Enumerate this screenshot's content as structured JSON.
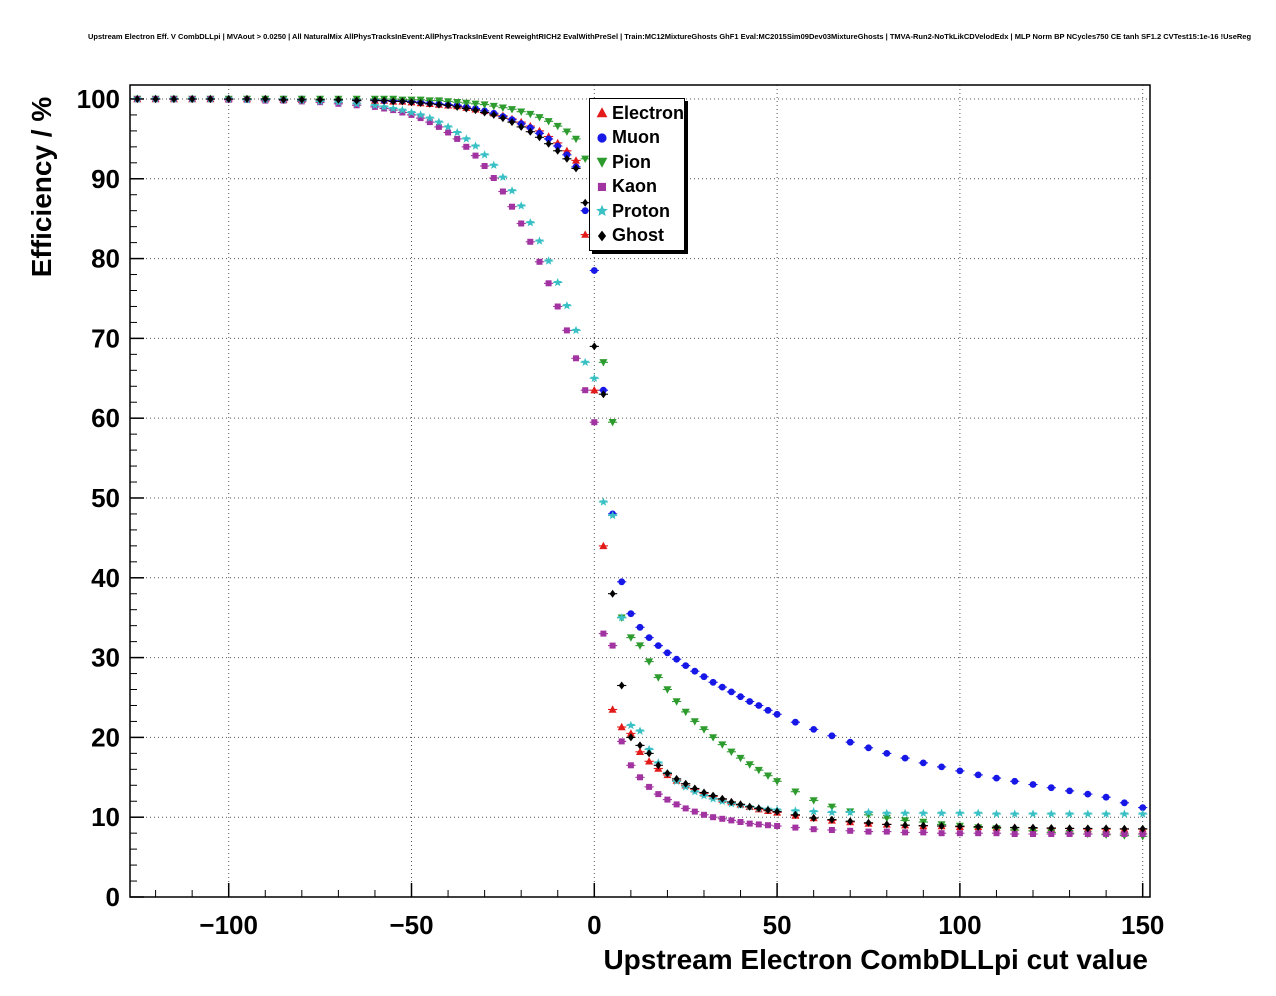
{
  "title": "Upstream Electron Eff. V CombDLLpi | MVAout > 0.0250 | All NaturalMix AllPhysTracksInEvent:AllPhysTracksInEvent ReweightRICH2 EvalWithPreSel | Train:MC12MixtureGhosts GhF1 Eval:MC2015Sim09Dev03MixtureGhosts | TMVA-Run2-NoTkLikCDVelodEdx | MLP Norm BP NCycles750 CE tanh SF1.2 CVTest15:1e-16 !UseReg",
  "chart_data": {
    "type": "scatter",
    "title": "Upstream Electron Eff. V CombDLLpi",
    "xlabel": "Upstream Electron CombDLLpi cut value",
    "ylabel": "Efficiency / %",
    "xlim": [
      -127,
      152
    ],
    "ylim": [
      0,
      101.75
    ],
    "grid": true,
    "legend_position": "top-center",
    "x_ticks": {
      "values": [
        -100,
        -50,
        0,
        50,
        100,
        150
      ],
      "labels": [
        "−100",
        "−50",
        "0",
        "50",
        "100",
        "150"
      ]
    },
    "y_ticks": {
      "values": [
        0,
        10,
        20,
        30,
        40,
        50,
        60,
        70,
        80,
        90,
        100
      ],
      "labels": [
        "0",
        "10",
        "20",
        "30",
        "40",
        "50",
        "60",
        "70",
        "80",
        "90",
        "100"
      ]
    },
    "x_minor_step": 10,
    "y_minor_step": 2,
    "x": [
      -125,
      -120,
      -115,
      -110,
      -105,
      -100,
      -95,
      -90,
      -85,
      -80,
      -75,
      -70,
      -65,
      -60,
      -57.5,
      -55,
      -52.5,
      -50,
      -47.5,
      -45,
      -42.5,
      -40,
      -37.5,
      -35,
      -32.5,
      -30,
      -27.5,
      -25,
      -22.5,
      -20,
      -17.5,
      -15,
      -12.5,
      -10,
      -7.5,
      -5,
      -2.5,
      0,
      2.5,
      5,
      7.5,
      10,
      12.5,
      15,
      17.5,
      20,
      22.5,
      25,
      27.5,
      30,
      32.5,
      35,
      37.5,
      40,
      42.5,
      45,
      47.5,
      50,
      55,
      60,
      65,
      70,
      75,
      80,
      85,
      90,
      95,
      100,
      105,
      110,
      115,
      120,
      125,
      130,
      135,
      140,
      145,
      150
    ],
    "series": [
      {
        "name": "Electron",
        "color": "#e31a1a",
        "marker": "triangle-up",
        "values": [
          100,
          100,
          100,
          100,
          100,
          100,
          100,
          100,
          99.9,
          99.9,
          99.9,
          99.9,
          99.8,
          99.8,
          99.8,
          99.7,
          99.7,
          99.6,
          99.5,
          99.4,
          99.3,
          99.2,
          99.1,
          98.9,
          98.7,
          98.5,
          98.2,
          97.9,
          97.5,
          97.1,
          96.6,
          96.0,
          95.3,
          94.5,
          93.5,
          92.3,
          83.0,
          63.5,
          44.0,
          23.5,
          21.3,
          20.5,
          18.2,
          17.0,
          16.1,
          15.3,
          14.6,
          14.0,
          13.5,
          13.0,
          12.6,
          12.2,
          11.9,
          11.6,
          11.3,
          11.0,
          10.8,
          10.6,
          10.2,
          9.9,
          9.6,
          9.4,
          9.2,
          9.1,
          9.0,
          8.9,
          8.9,
          8.8,
          8.8,
          8.7,
          8.7,
          8.6,
          8.6,
          8.6,
          8.5,
          8.5,
          8.5,
          8.5
        ]
      },
      {
        "name": "Muon",
        "color": "#1717e8",
        "marker": "circle",
        "values": [
          100,
          100,
          100,
          100,
          100,
          100,
          100,
          100,
          100,
          100,
          99.9,
          99.9,
          99.9,
          99.9,
          99.8,
          99.8,
          99.8,
          99.7,
          99.6,
          99.5,
          99.4,
          99.3,
          99.2,
          99.0,
          98.8,
          98.5,
          98.2,
          97.8,
          97.4,
          96.9,
          96.4,
          95.7,
          95.0,
          94.1,
          93.0,
          91.5,
          86.0,
          78.5,
          63.5,
          48.0,
          39.5,
          35.5,
          33.8,
          32.5,
          31.5,
          30.6,
          29.8,
          29.0,
          28.3,
          27.6,
          26.9,
          26.3,
          25.7,
          25.1,
          24.5,
          24.0,
          23.4,
          22.9,
          21.9,
          21.0,
          20.2,
          19.4,
          18.7,
          18.0,
          17.4,
          16.8,
          16.3,
          15.8,
          15.3,
          14.9,
          14.5,
          14.1,
          13.7,
          13.3,
          12.9,
          12.5,
          11.8,
          11.2
        ]
      },
      {
        "name": "Pion",
        "color": "#2e9b2e",
        "marker": "triangle-down",
        "values": [
          100,
          100,
          100,
          100,
          100,
          100,
          100,
          100,
          100,
          100,
          100,
          100,
          100,
          100,
          100,
          100,
          99.9,
          99.9,
          99.9,
          99.8,
          99.8,
          99.7,
          99.6,
          99.5,
          99.4,
          99.3,
          99.1,
          98.9,
          98.7,
          98.4,
          98.1,
          97.7,
          97.2,
          96.6,
          95.9,
          95.0,
          92.5,
          86.0,
          67.0,
          59.5,
          35.0,
          32.5,
          31.5,
          29.5,
          27.5,
          26.0,
          24.5,
          23.2,
          22.0,
          21.0,
          20.0,
          19.1,
          18.2,
          17.4,
          16.6,
          15.9,
          15.2,
          14.5,
          13.2,
          12.1,
          11.3,
          10.7,
          10.3,
          9.9,
          9.6,
          9.4,
          9.1,
          8.9,
          8.7,
          8.6,
          8.4,
          8.3,
          8.1,
          8.0,
          7.9,
          7.8,
          7.7,
          7.6
        ]
      },
      {
        "name": "Kaon",
        "color": "#a234a2",
        "marker": "square",
        "values": [
          100,
          100,
          100,
          100,
          100,
          99.9,
          99.9,
          99.8,
          99.8,
          99.7,
          99.6,
          99.4,
          99.2,
          99.0,
          98.8,
          98.6,
          98.3,
          98.0,
          97.6,
          97.1,
          96.5,
          95.8,
          95.0,
          94.0,
          92.9,
          91.6,
          90.1,
          88.4,
          86.5,
          84.4,
          82.1,
          79.6,
          76.9,
          74.0,
          71.0,
          67.5,
          63.5,
          59.5,
          33.0,
          31.5,
          19.5,
          16.5,
          15.0,
          13.8,
          12.9,
          12.2,
          11.6,
          11.1,
          10.7,
          10.3,
          10.0,
          9.8,
          9.6,
          9.4,
          9.2,
          9.1,
          9.0,
          8.9,
          8.7,
          8.5,
          8.4,
          8.3,
          8.2,
          8.2,
          8.1,
          8.1,
          8.0,
          8.0,
          8.0,
          8.0,
          7.9,
          7.9,
          7.9,
          7.9,
          7.9,
          7.9,
          7.9,
          7.9
        ]
      },
      {
        "name": "Proton",
        "color": "#38c0c4",
        "marker": "star",
        "values": [
          100,
          100,
          100,
          100,
          100,
          100,
          99.9,
          99.9,
          99.9,
          99.8,
          99.7,
          99.6,
          99.4,
          99.2,
          99.0,
          98.8,
          98.6,
          98.3,
          98.0,
          97.6,
          97.1,
          96.5,
          95.8,
          95.0,
          94.1,
          93.0,
          91.7,
          90.2,
          88.5,
          86.6,
          84.5,
          82.2,
          79.7,
          77.0,
          74.1,
          71.0,
          67.0,
          65.0,
          49.5,
          47.8,
          35.0,
          21.5,
          20.8,
          18.5,
          16.8,
          15.5,
          14.5,
          13.8,
          13.2,
          12.7,
          12.3,
          12.0,
          11.7,
          11.5,
          11.3,
          11.1,
          11.0,
          10.9,
          10.8,
          10.7,
          10.6,
          10.6,
          10.6,
          10.5,
          10.5,
          10.5,
          10.5,
          10.5,
          10.5,
          10.4,
          10.4,
          10.4,
          10.4,
          10.4,
          10.4,
          10.4,
          10.4,
          10.4
        ]
      },
      {
        "name": "Ghost",
        "color": "#000000",
        "marker": "diamond",
        "values": [
          100,
          100,
          100,
          100,
          100,
          100,
          100,
          100,
          99.9,
          99.9,
          99.9,
          99.9,
          99.8,
          99.8,
          99.8,
          99.7,
          99.7,
          99.6,
          99.5,
          99.4,
          99.3,
          99.2,
          99.0,
          98.8,
          98.6,
          98.3,
          98.0,
          97.6,
          97.1,
          96.5,
          95.9,
          95.2,
          94.4,
          93.5,
          92.5,
          91.3,
          87.0,
          69.0,
          63.0,
          38.0,
          26.5,
          20.0,
          19.0,
          18.0,
          16.5,
          15.5,
          14.8,
          14.2,
          13.6,
          13.1,
          12.7,
          12.3,
          11.9,
          11.6,
          11.3,
          11.1,
          10.9,
          10.7,
          10.3,
          9.9,
          9.7,
          9.5,
          9.3,
          9.1,
          9.0,
          8.95,
          8.9,
          8.85,
          8.8,
          8.75,
          8.7,
          8.7,
          8.65,
          8.6,
          8.6,
          8.6,
          8.55,
          8.55
        ]
      }
    ]
  }
}
